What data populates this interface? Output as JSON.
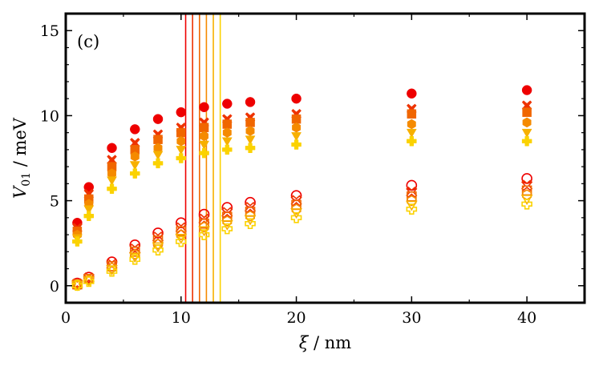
{
  "chart_data": {
    "type": "scatter",
    "panel_label": "(c)",
    "title": "",
    "xlabel_symbol": "ξ",
    "xlabel_unit": " / nm",
    "ylabel_symbol": "V",
    "ylabel_sub": "01",
    "ylabel_unit": " / meV",
    "xlim": [
      0,
      45
    ],
    "ylim": [
      -1,
      16
    ],
    "xticks": [
      0,
      10,
      20,
      30,
      40
    ],
    "yticks": [
      0,
      5,
      10,
      15
    ],
    "grid": false,
    "legend": "none",
    "x": [
      1,
      2,
      4,
      6,
      8,
      10,
      12,
      14,
      16,
      20,
      30,
      40
    ],
    "series": [
      {
        "marker": "circle-filled",
        "color": "#ee0000",
        "values": [
          3.7,
          5.8,
          8.1,
          9.2,
          9.8,
          10.2,
          10.5,
          10.7,
          10.8,
          11.0,
          11.3,
          11.5
        ]
      },
      {
        "marker": "x-filled",
        "color": "#ee3300",
        "values": [
          3.4,
          5.4,
          7.4,
          8.4,
          8.9,
          9.3,
          9.6,
          9.8,
          9.9,
          10.1,
          10.4,
          10.6
        ]
      },
      {
        "marker": "square-filled",
        "color": "#f06600",
        "values": [
          3.2,
          5.1,
          7.0,
          8.0,
          8.6,
          9.0,
          9.3,
          9.5,
          9.6,
          9.8,
          10.1,
          10.2
        ]
      },
      {
        "marker": "hexagon-filled",
        "color": "#f58a00",
        "values": [
          3.0,
          4.8,
          6.6,
          7.6,
          8.1,
          8.5,
          8.8,
          9.0,
          9.1,
          9.3,
          9.5,
          9.6
        ]
      },
      {
        "marker": "triangle-down-filled",
        "color": "#f7b000",
        "values": [
          2.8,
          4.5,
          6.2,
          7.1,
          7.7,
          8.0,
          8.3,
          8.5,
          8.6,
          8.8,
          9.0,
          9.0
        ]
      },
      {
        "marker": "plus-filled",
        "color": "#fbd200",
        "values": [
          2.6,
          4.1,
          5.7,
          6.6,
          7.2,
          7.5,
          7.8,
          8.0,
          8.1,
          8.3,
          8.5,
          8.5
        ]
      },
      {
        "marker": "circle-open",
        "color": "#ee0000",
        "values": [
          0.15,
          0.5,
          1.4,
          2.4,
          3.1,
          3.7,
          4.2,
          4.6,
          4.9,
          5.3,
          5.9,
          6.3
        ]
      },
      {
        "marker": "x-open",
        "color": "#ee3300",
        "values": [
          0.1,
          0.45,
          1.25,
          2.15,
          2.85,
          3.4,
          3.9,
          4.3,
          4.6,
          5.0,
          5.5,
          5.9
        ]
      },
      {
        "marker": "square-open",
        "color": "#f06600",
        "values": [
          0.08,
          0.4,
          1.15,
          2.0,
          2.65,
          3.2,
          3.65,
          4.05,
          4.35,
          4.75,
          5.25,
          5.6
        ]
      },
      {
        "marker": "hexagon-open",
        "color": "#f58a00",
        "values": [
          0.06,
          0.35,
          1.05,
          1.85,
          2.45,
          3.0,
          3.45,
          3.8,
          4.1,
          4.5,
          5.0,
          5.35
        ]
      },
      {
        "marker": "triangle-down-open",
        "color": "#f7b000",
        "values": [
          0.04,
          0.3,
          0.95,
          1.7,
          2.3,
          2.8,
          3.25,
          3.6,
          3.9,
          4.3,
          4.75,
          5.1
        ]
      },
      {
        "marker": "plus-open",
        "color": "#fbd200",
        "values": [
          0.02,
          0.25,
          0.85,
          1.55,
          2.1,
          2.6,
          3.0,
          3.35,
          3.65,
          4.0,
          4.5,
          4.8
        ]
      }
    ],
    "vlines": [
      {
        "x": 10.4,
        "color": "#ee0000"
      },
      {
        "x": 11.0,
        "color": "#ee3300"
      },
      {
        "x": 11.6,
        "color": "#f06600"
      },
      {
        "x": 12.2,
        "color": "#f58a00"
      },
      {
        "x": 12.8,
        "color": "#f7b000"
      },
      {
        "x": 13.4,
        "color": "#fbd200"
      }
    ]
  }
}
